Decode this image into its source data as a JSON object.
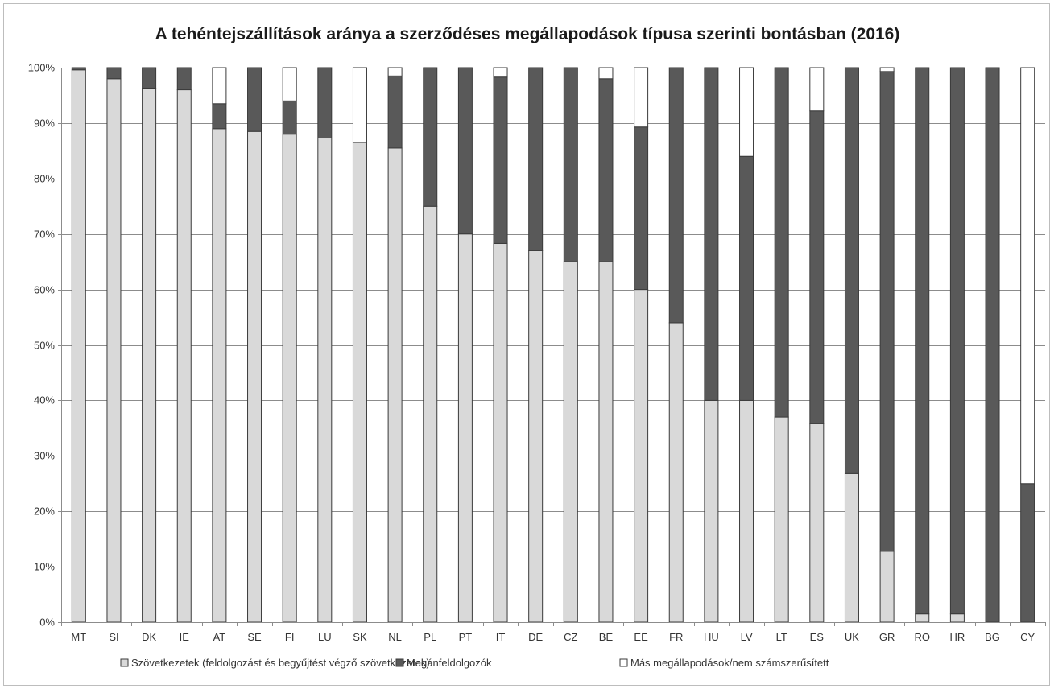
{
  "chart_data": {
    "type": "bar",
    "stacked": true,
    "title": "A tehéntejszállítások aránya a szerződéses megállapodások típusa szerinti bontásban (2016)",
    "categories": [
      "MT",
      "SI",
      "DK",
      "IE",
      "AT",
      "SE",
      "FI",
      "LU",
      "SK",
      "NL",
      "PL",
      "PT",
      "IT",
      "DE",
      "CZ",
      "BE",
      "EE",
      "FR",
      "HU",
      "LV",
      "LT",
      "ES",
      "UK",
      "GR",
      "RO",
      "HR",
      "BG",
      "CY"
    ],
    "yticks": [
      "0%",
      "10%",
      "20%",
      "30%",
      "40%",
      "50%",
      "60%",
      "70%",
      "80%",
      "90%",
      "100%"
    ],
    "ylim": [
      0,
      100
    ],
    "grid": true,
    "legend_position": "bottom",
    "series": [
      {
        "name": "Szövetkezetek (feldolgozást és begyűjtést végző szövetkezetek)",
        "color": "#d9d9d9",
        "values": [
          99.6,
          98,
          96.3,
          96,
          89,
          88.5,
          88,
          87.3,
          86.5,
          85.5,
          75,
          70,
          68.3,
          67,
          65,
          65,
          60,
          54,
          40,
          40,
          37,
          35.8,
          26.8,
          12.8,
          1.5,
          1.5,
          0,
          0
        ]
      },
      {
        "name": "Magánfeldolgozók",
        "color": "#595959",
        "values": [
          0.4,
          2,
          3.7,
          4,
          4.5,
          11.5,
          6,
          12.7,
          0,
          13,
          25,
          30,
          30,
          33,
          35,
          33,
          29.3,
          46,
          60,
          44,
          63,
          56.4,
          73.2,
          86.5,
          98.5,
          98.5,
          100,
          25
        ]
      },
      {
        "name": "Más megállapodások/nem számszerűsített",
        "color": "#ffffff",
        "values": [
          0,
          0,
          0,
          0,
          6.5,
          0,
          6,
          0,
          13.5,
          1.5,
          0,
          0,
          1.7,
          0,
          0,
          2,
          10.7,
          0,
          0,
          16,
          0,
          7.8,
          0,
          0.7,
          0,
          0,
          0,
          75
        ]
      }
    ]
  }
}
